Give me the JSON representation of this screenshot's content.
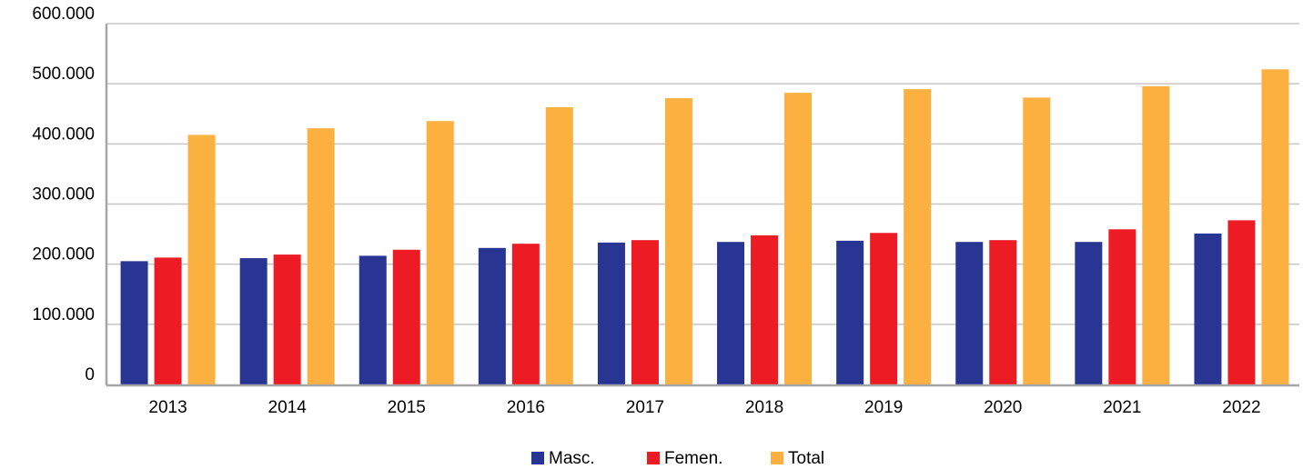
{
  "chart_data": {
    "type": "bar",
    "categories": [
      "2013",
      "2014",
      "2015",
      "2016",
      "2017",
      "2018",
      "2019",
      "2020",
      "2021",
      "2022"
    ],
    "series": [
      {
        "name": "Masc.",
        "color": "#283593",
        "values": [
          205000,
          210000,
          214000,
          227000,
          236000,
          237000,
          239000,
          237000,
          237000,
          251000
        ]
      },
      {
        "name": "Femen.",
        "color": "#ed1c24",
        "values": [
          211000,
          216000,
          224000,
          234000,
          240000,
          248000,
          252000,
          240000,
          258000,
          273000
        ]
      },
      {
        "name": "Total",
        "color": "#fbb040",
        "values": [
          415000,
          426000,
          438000,
          461000,
          476000,
          485000,
          491000,
          477000,
          496000,
          524000
        ]
      }
    ],
    "ylim": [
      0,
      600000
    ],
    "yticks": [
      0,
      {
        "value": 100000,
        "label": "100.000"
      },
      {
        "value": 200000,
        "label": "200.000"
      },
      {
        "value": 300000,
        "label": "300.000"
      },
      {
        "value": 400000,
        "label": "400.000"
      },
      {
        "value": 500000,
        "label": "500.000"
      },
      {
        "value": 600000,
        "label": "600.000"
      }
    ],
    "grid": true,
    "legend": "bottom"
  }
}
